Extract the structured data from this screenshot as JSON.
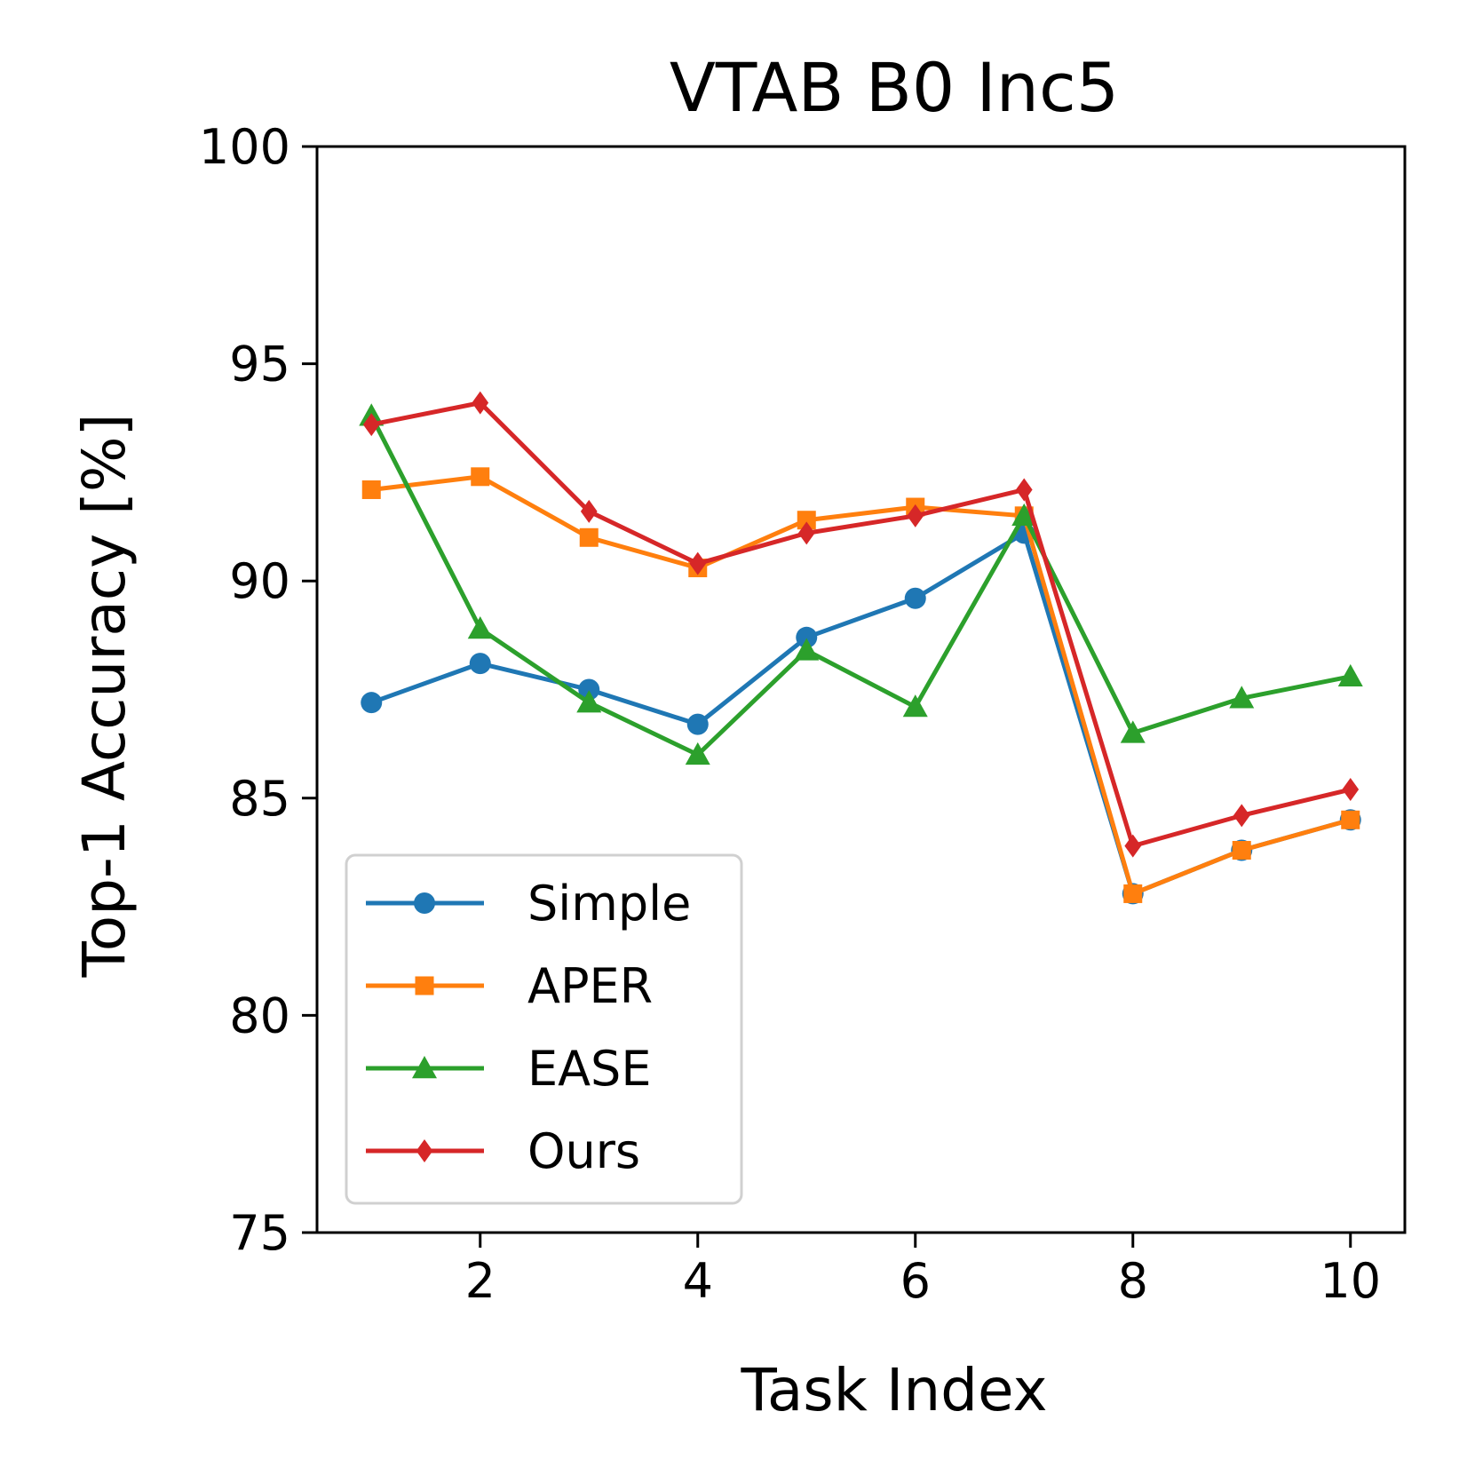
{
  "chart_data": {
    "type": "line",
    "title": "VTAB B0 Inc5",
    "xlabel": "Task Index",
    "ylabel": "Top-1 Accuracy [%]",
    "xlim": [
      0.5,
      10.5
    ],
    "ylim": [
      75,
      100
    ],
    "xticks": [
      2,
      4,
      6,
      8,
      10
    ],
    "yticks": [
      75,
      80,
      85,
      90,
      95,
      100
    ],
    "grid": false,
    "legend_position": "lower-left",
    "x": [
      1,
      2,
      3,
      4,
      5,
      6,
      7,
      8,
      9,
      10
    ],
    "series": [
      {
        "name": "Simple",
        "color": "#1f77b4",
        "marker": "circle",
        "values": [
          87.2,
          88.1,
          87.5,
          86.7,
          88.7,
          89.6,
          91.1,
          82.8,
          83.8,
          84.5
        ]
      },
      {
        "name": "APER",
        "color": "#ff7f0e",
        "marker": "square",
        "values": [
          92.1,
          92.4,
          91.0,
          90.3,
          91.4,
          91.7,
          91.5,
          82.8,
          83.8,
          84.5
        ]
      },
      {
        "name": "EASE",
        "color": "#2ca02c",
        "marker": "triangle",
        "values": [
          93.8,
          88.9,
          87.2,
          86.0,
          88.4,
          87.1,
          91.5,
          86.5,
          87.3,
          87.8
        ]
      },
      {
        "name": "Ours",
        "color": "#d62728",
        "marker": "diamond",
        "values": [
          93.6,
          94.1,
          91.6,
          90.4,
          91.1,
          91.5,
          92.1,
          83.9,
          84.6,
          85.2
        ]
      }
    ]
  }
}
